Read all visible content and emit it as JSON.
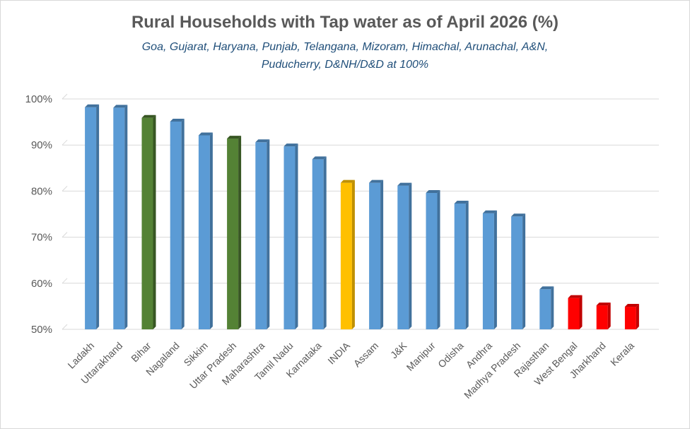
{
  "chart_data": {
    "type": "bar",
    "title": "Rural Households with Tap water as of April 2026 (%)",
    "subtitle_lines": [
      "Goa, Gujarat, Haryana, Punjab, Telangana, Mizoram, Himachal, Arunachal, A&N,",
      "Puducherry, D&NH/D&D at 100%"
    ],
    "xlabel": "",
    "ylabel": "",
    "ylim": [
      50,
      100
    ],
    "y_ticks": [
      50,
      60,
      70,
      80,
      90,
      100
    ],
    "y_tick_labels": [
      "50%",
      "60%",
      "70%",
      "80%",
      "90%",
      "100%"
    ],
    "grid": true,
    "categories": [
      "Ladakh",
      "Uttarakhand",
      "Bihar",
      "Nagaland",
      "Sikkim",
      "Uttar Pradesh",
      "Maharashtra",
      "Tamil Nadu",
      "Karnataka",
      "INDIA",
      "Assam",
      "J&K",
      "Manipur",
      "Odisha",
      "Andhra",
      "Madhya Pradesh",
      "Rajasthan",
      "West Bengal",
      "Jharkhand",
      "Kerala"
    ],
    "values": [
      98.2,
      98.1,
      95.9,
      95.1,
      92.1,
      91.4,
      90.6,
      89.7,
      86.9,
      81.8,
      81.8,
      81.2,
      79.6,
      77.3,
      75.2,
      74.5,
      58.7,
      56.8,
      55.2,
      54.9
    ],
    "bar_colors": [
      "#5b9bd5",
      "#5b9bd5",
      "#548235",
      "#5b9bd5",
      "#5b9bd5",
      "#548235",
      "#5b9bd5",
      "#5b9bd5",
      "#5b9bd5",
      "#ffc000",
      "#5b9bd5",
      "#5b9bd5",
      "#5b9bd5",
      "#5b9bd5",
      "#5b9bd5",
      "#5b9bd5",
      "#5b9bd5",
      "#ff0000",
      "#ff0000",
      "#ff0000"
    ],
    "bar_side_colors": [
      "#41719c",
      "#41719c",
      "#375623",
      "#41719c",
      "#41719c",
      "#375623",
      "#41719c",
      "#41719c",
      "#41719c",
      "#bf9000",
      "#41719c",
      "#41719c",
      "#41719c",
      "#41719c",
      "#41719c",
      "#41719c",
      "#41719c",
      "#c00000",
      "#c00000",
      "#c00000"
    ]
  }
}
